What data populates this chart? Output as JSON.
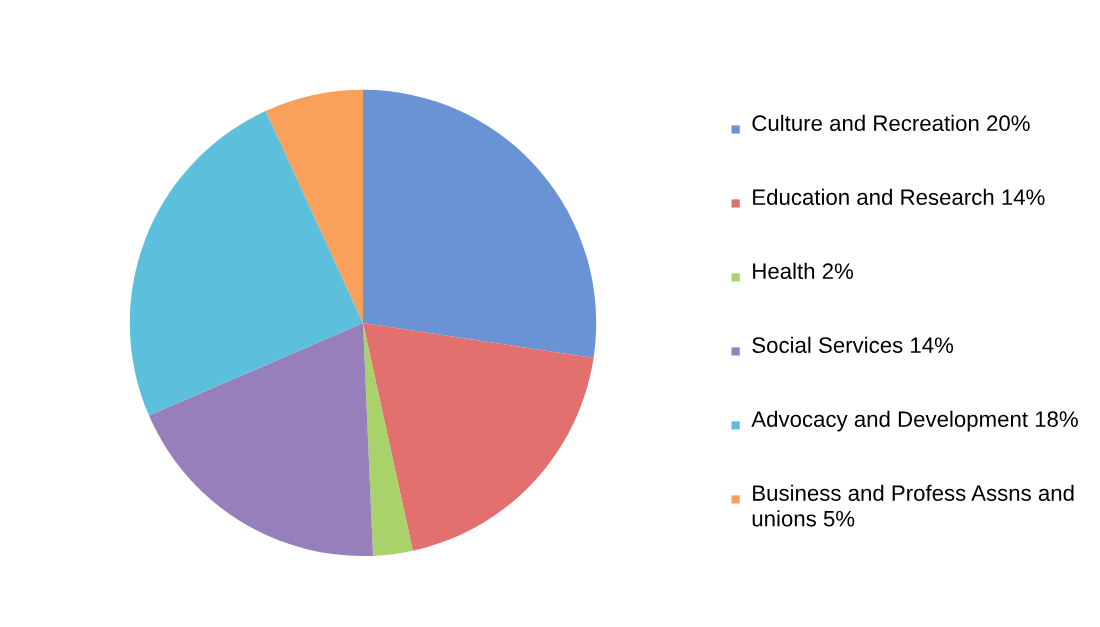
{
  "chart_data": {
    "type": "pie",
    "categories": [
      "Culture and Recreation 20%",
      "Education and Research 14%",
      "Health 2%",
      "Social Services 14%",
      "Advocacy and Development 18%",
      "Business and Profess Assns and unions 5%"
    ],
    "values": [
      20,
      14,
      2,
      14,
      18,
      5
    ],
    "colors": [
      "#6a93d6",
      "#e2706e",
      "#a9d26b",
      "#977fbc",
      "#5cc0dc",
      "#f9a05a"
    ],
    "legend": "right"
  }
}
